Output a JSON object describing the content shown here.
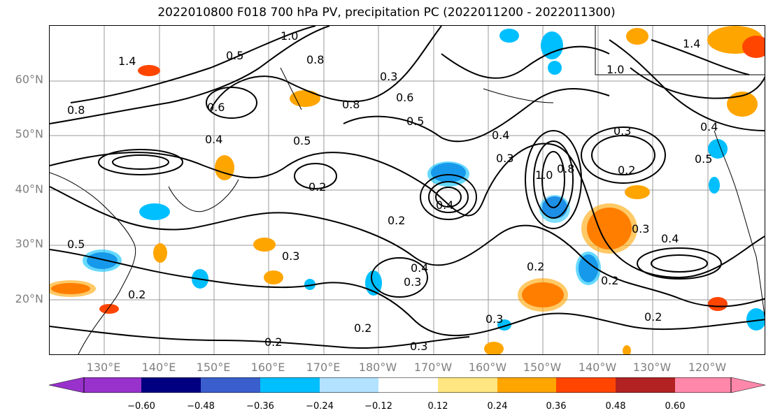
{
  "title": "2022010800 F018 700 hPa PV, precipitation PC (2022011200 - 2022011300)",
  "lat_labels": [
    "60°N",
    "50°N",
    "40°N",
    "30°N",
    "20°N"
  ],
  "lon_labels": [
    "130°E",
    "140°E",
    "150°E",
    "160°E",
    "170°E",
    "180°W",
    "170°W",
    "160°W",
    "150°W",
    "140°W",
    "130°W",
    "120°W"
  ],
  "contour_labels": [
    "1.4",
    "1.0",
    "0.8",
    "0.5",
    "0.6",
    "0.8",
    "0.3",
    "0.6",
    "0.8",
    "0.4",
    "0.5",
    "0.2",
    "0.2",
    "0.3",
    "0.4",
    "1.0",
    "0.8",
    "0.3",
    "0.2",
    "0.4",
    "0.5",
    "0.3",
    "0.4",
    "0.2",
    "0.3",
    "0.2",
    "0.3",
    "0.2",
    "0.4",
    "0.3",
    "0.2",
    "1.4",
    "1.0",
    "0.4",
    "0.5",
    "0.2",
    "0.3",
    "0.5",
    "0.2"
  ],
  "colorbar": {
    "ticks": [
      "−0.60",
      "−0.48",
      "−0.36",
      "−0.24",
      "−0.12",
      "0.12",
      "0.24",
      "0.36",
      "0.48",
      "0.60"
    ],
    "colors": [
      "#9932cc",
      "#000080",
      "#3a5fcd",
      "#00bfff",
      "#b2e2ff",
      "#ffffff",
      "#ffe680",
      "#ffa500",
      "#ff4500",
      "#b22222",
      "#ff88aa"
    ]
  }
}
